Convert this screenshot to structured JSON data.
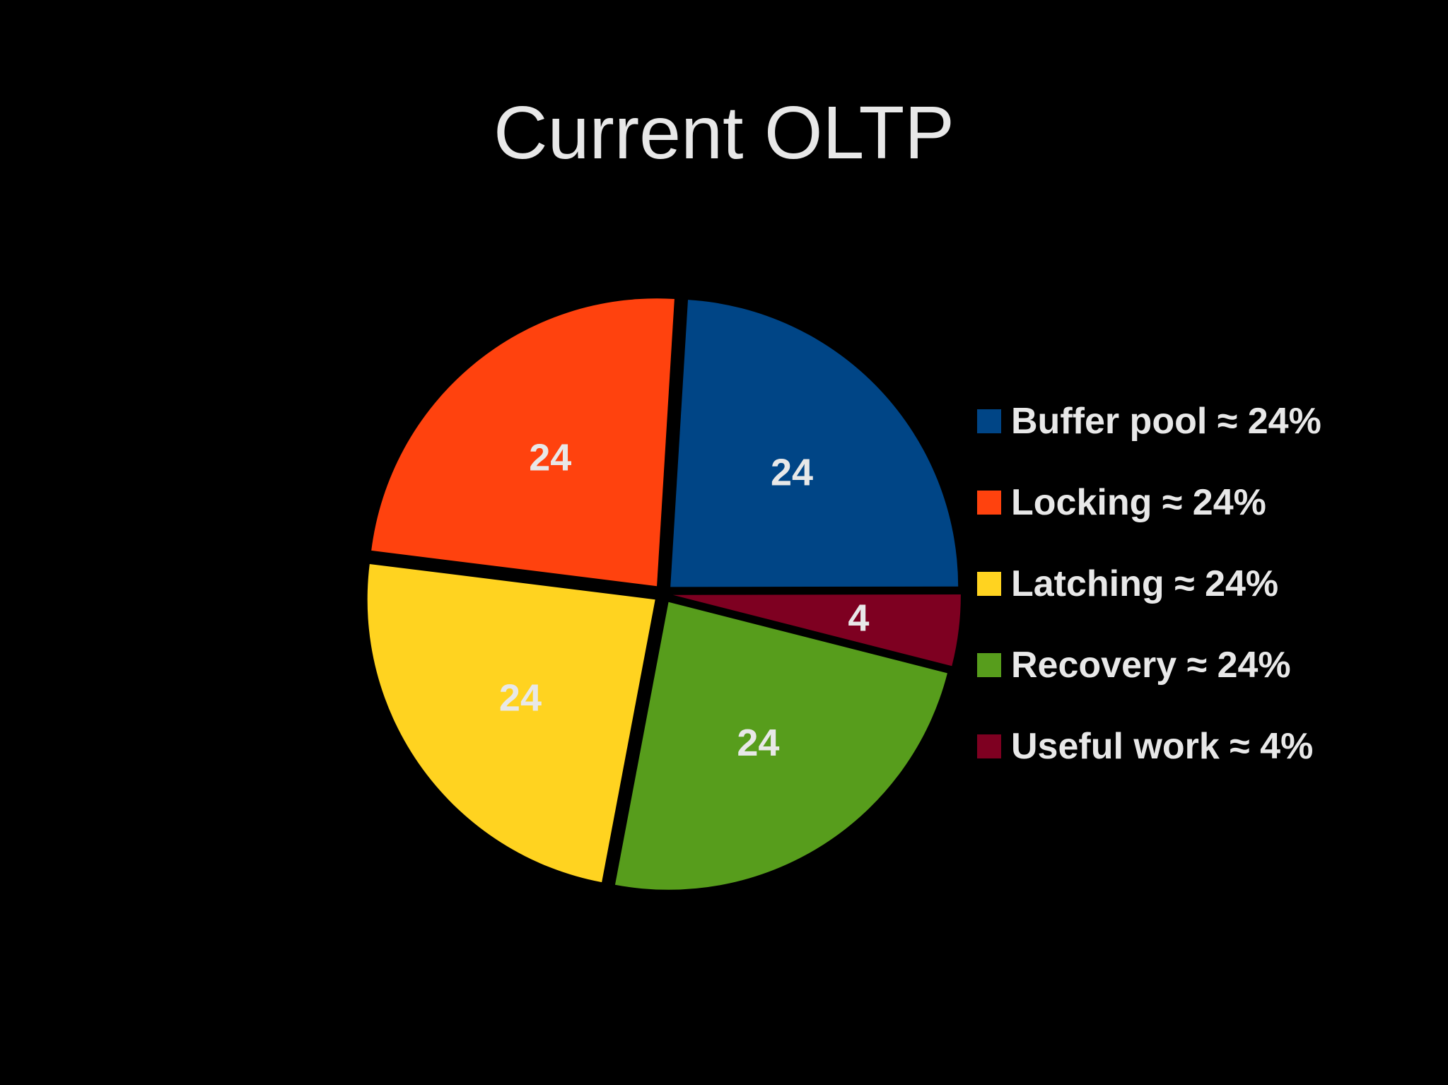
{
  "chart_data": {
    "type": "pie",
    "title": "Current OLTP",
    "slices": [
      {
        "name": "Buffer pool",
        "value": 24,
        "label": "24",
        "legend": "Buffer pool ≈ 24%",
        "color": "#004586"
      },
      {
        "name": "Locking",
        "value": 24,
        "label": "24",
        "legend": "Locking ≈ 24%",
        "color": "#ff420e"
      },
      {
        "name": "Latching",
        "value": 24,
        "label": "24",
        "legend": "Latching ≈ 24%",
        "color": "#ffd320"
      },
      {
        "name": "Recovery",
        "value": 24,
        "label": "24",
        "legend": "Recovery ≈ 24%",
        "color": "#579d1c"
      },
      {
        "name": "Useful work",
        "value": 4,
        "label": "4",
        "legend": "Useful work ≈ 4%",
        "color": "#7e0021"
      }
    ],
    "legend_position": "right",
    "exploded": true,
    "background": "#000000"
  }
}
